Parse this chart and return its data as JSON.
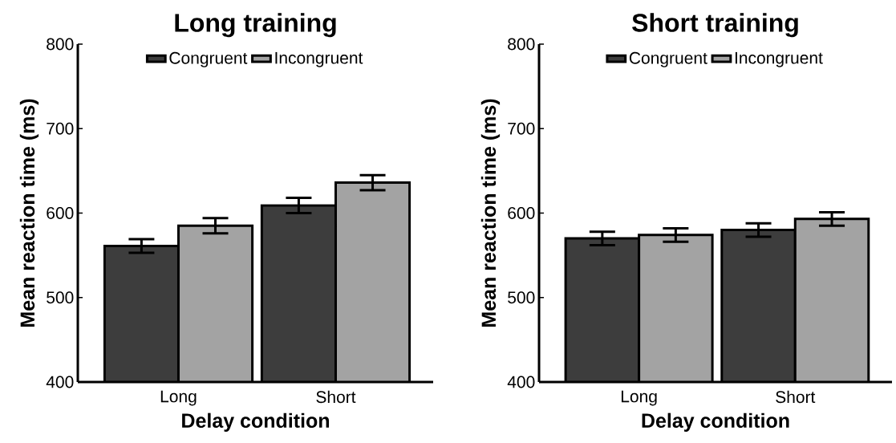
{
  "chart_data": [
    {
      "type": "bar",
      "title": "Long training",
      "xlabel": "Delay condition",
      "ylabel": "Mean reaction time (ms)",
      "categories": [
        "Long",
        "Short"
      ],
      "series": [
        {
          "name": "Congruent",
          "color": "#3d3d3d",
          "values": [
            561,
            609
          ],
          "errors": [
            8,
            9
          ]
        },
        {
          "name": "Incongruent",
          "color": "#a3a3a3",
          "values": [
            585,
            636
          ],
          "errors": [
            9,
            9
          ]
        }
      ],
      "ylim": [
        400,
        800
      ],
      "yticks": [
        400,
        500,
        600,
        700,
        800
      ],
      "legend": "top",
      "grid": false
    },
    {
      "type": "bar",
      "title": "Short training",
      "xlabel": "Delay condition",
      "ylabel": "Mean reaction time (ms)",
      "categories": [
        "Long",
        "Short"
      ],
      "series": [
        {
          "name": "Congruent",
          "color": "#3d3d3d",
          "values": [
            570,
            580
          ],
          "errors": [
            8,
            8
          ]
        },
        {
          "name": "Incongruent",
          "color": "#a3a3a3",
          "values": [
            574,
            593
          ],
          "errors": [
            8,
            8
          ]
        }
      ],
      "ylim": [
        400,
        800
      ],
      "yticks": [
        400,
        500,
        600,
        700,
        800
      ],
      "legend": "top",
      "grid": false
    }
  ]
}
